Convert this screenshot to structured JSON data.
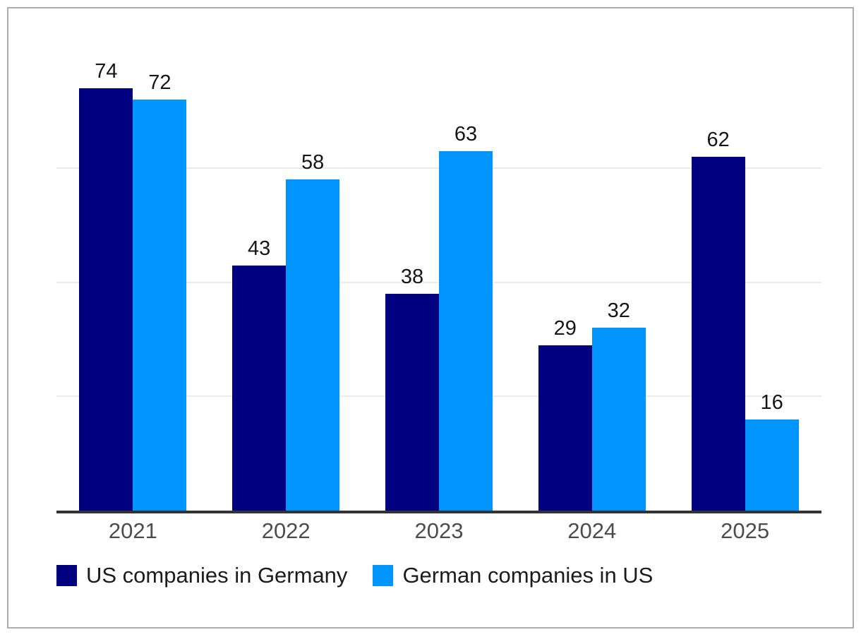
{
  "chart_data": {
    "type": "bar",
    "title": "",
    "categories": [
      "2021",
      "2022",
      "2023",
      "2024",
      "2025"
    ],
    "series": [
      {
        "name": "US companies in Germany",
        "color": "#000080",
        "values": [
          74,
          43,
          38,
          29,
          62
        ]
      },
      {
        "name": "German companies in US",
        "color": "#0095ff",
        "values": [
          72,
          58,
          63,
          32,
          16
        ]
      }
    ],
    "ylim": [
      0,
      80
    ],
    "gridline_values": [
      20,
      40,
      60
    ],
    "grid_on": true,
    "grid_color": "#ebebeb",
    "axis_color": "#333333",
    "value_label_color": "#161616",
    "tick_label_color": "#4c4c4c",
    "legend_position": "bottom-left",
    "data_labels_shown": true,
    "y_axis_labels_shown": false
  }
}
